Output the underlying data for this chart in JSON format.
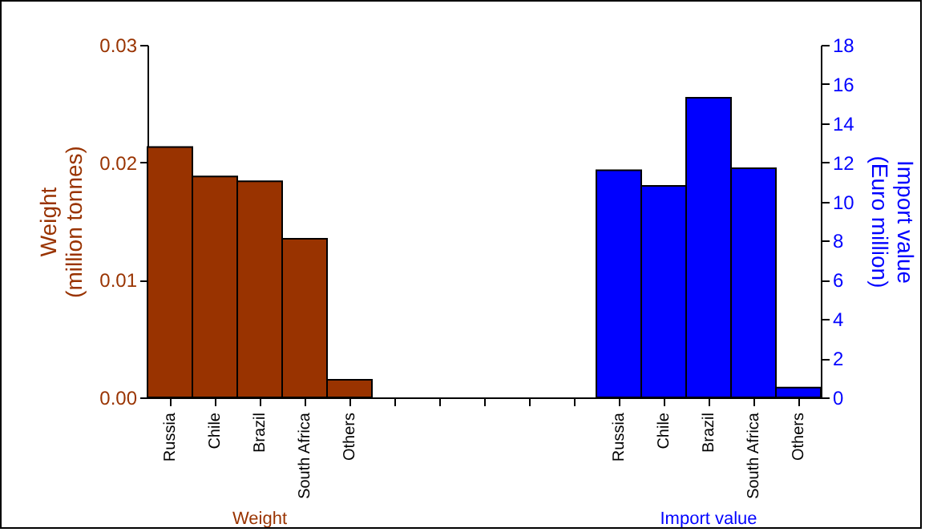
{
  "chart_data": {
    "type": "bar",
    "categories": [
      "Russia",
      "Chile",
      "Brazil",
      "South Africa",
      "Others",
      null,
      null,
      null,
      null,
      null,
      "Russia",
      "Chile",
      "Brazil",
      "South Africa",
      "Others"
    ],
    "series": [
      {
        "name": "Weight",
        "color": "#993300",
        "values": [
          0.0213,
          0.0188,
          0.0184,
          0.0135,
          0.0015,
          null,
          null,
          null,
          null,
          null,
          null,
          null,
          null,
          null,
          null
        ]
      },
      {
        "name": "Import value",
        "color": "#0000ff",
        "axis": "y2",
        "values": [
          null,
          null,
          null,
          null,
          null,
          null,
          null,
          null,
          null,
          null,
          11.6,
          10.8,
          15.3,
          11.7,
          0.5
        ]
      }
    ],
    "ylabel": "Weight\n(million tonnes)",
    "y2label": "Import value\n(Euro million)",
    "ylim": [
      0,
      0.03
    ],
    "yticks": [
      {
        "value": 0,
        "label": "0.00"
      },
      {
        "value": 0.01,
        "label": "0.01"
      },
      {
        "value": 0.02,
        "label": "0.02"
      },
      {
        "value": 0.03,
        "label": "0.03"
      }
    ],
    "y2lim": [
      0,
      18
    ],
    "y2ticks": [
      0,
      2,
      4,
      6,
      8,
      10,
      12,
      14,
      16,
      18
    ]
  }
}
